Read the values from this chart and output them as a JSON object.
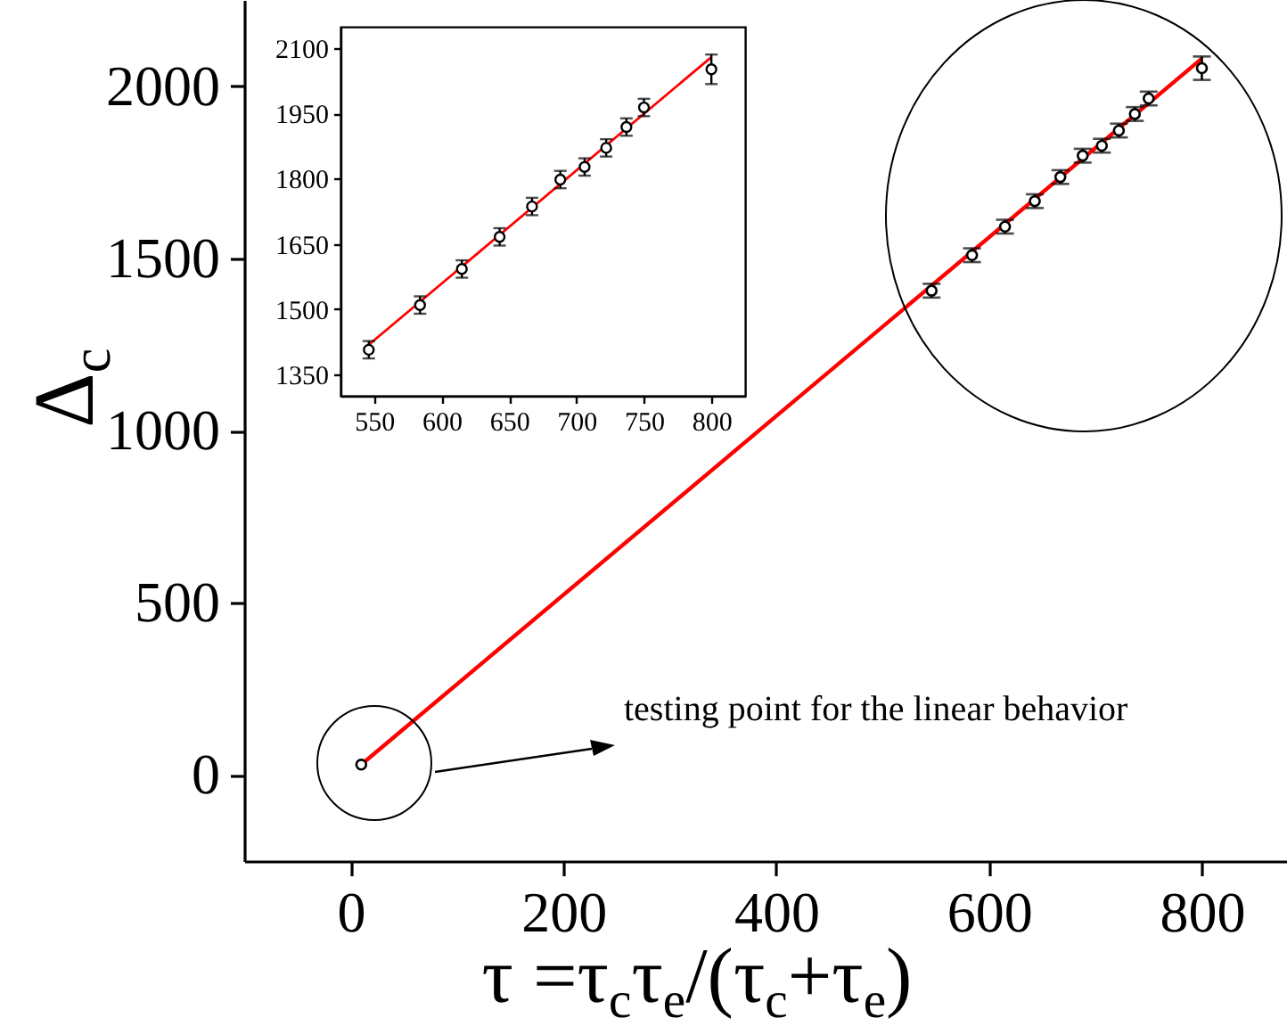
{
  "chart_data": [
    {
      "type": "scatter",
      "xlabel": "τ =τ$_{c}$τ$_{e}$/(τ$_{c}$+τ$_{e}$)",
      "ylabel": "Δ$_{c}$",
      "annotations": [
        "testing point for the linear behavior"
      ],
      "xlim": [
        -100,
        880
      ],
      "ylim": [
        -250,
        2250
      ],
      "xticks": [
        0,
        200,
        400,
        600,
        800
      ],
      "yticks": [
        0,
        500,
        1000,
        1500,
        2000
      ],
      "series": [
        {
          "marker": "circle",
          "color": "#000000",
          "x": [
            10,
            546,
            584,
            615,
            643,
            667,
            688,
            706,
            722,
            737,
            750,
            800
          ],
          "values": [
            30,
            1406,
            1509,
            1592,
            1666,
            1736,
            1798,
            1827,
            1871,
            1919,
            1964,
            2052
          ],
          "errors": [
            null,
            20,
            20,
            20,
            20,
            20,
            20,
            20,
            20,
            20,
            20,
            34
          ]
        },
        {
          "type": "line",
          "color": "#ff0000",
          "x": [
            10,
            800
          ],
          "values": [
            30,
            2080
          ]
        }
      ]
    },
    {
      "type": "scatter",
      "xlim": [
        525,
        825
      ],
      "ylim": [
        1300,
        2150
      ],
      "xticks": [
        550,
        600,
        650,
        700,
        750,
        800
      ],
      "yticks": [
        1350,
        1500,
        1650,
        1800,
        1950,
        2100
      ],
      "series": [
        {
          "marker": "circle",
          "color": "#000000",
          "x": [
            546,
            584,
            615,
            643,
            667,
            688,
            706,
            722,
            737,
            750,
            800
          ],
          "values": [
            1406,
            1509,
            1592,
            1666,
            1736,
            1798,
            1827,
            1871,
            1919,
            1964,
            2052
          ],
          "errors": [
            20,
            20,
            20,
            20,
            20,
            20,
            20,
            20,
            20,
            20,
            34
          ]
        },
        {
          "type": "line",
          "color": "#ff0000",
          "x": [
            545,
            800
          ],
          "values": [
            1415,
            2080
          ]
        }
      ]
    }
  ]
}
